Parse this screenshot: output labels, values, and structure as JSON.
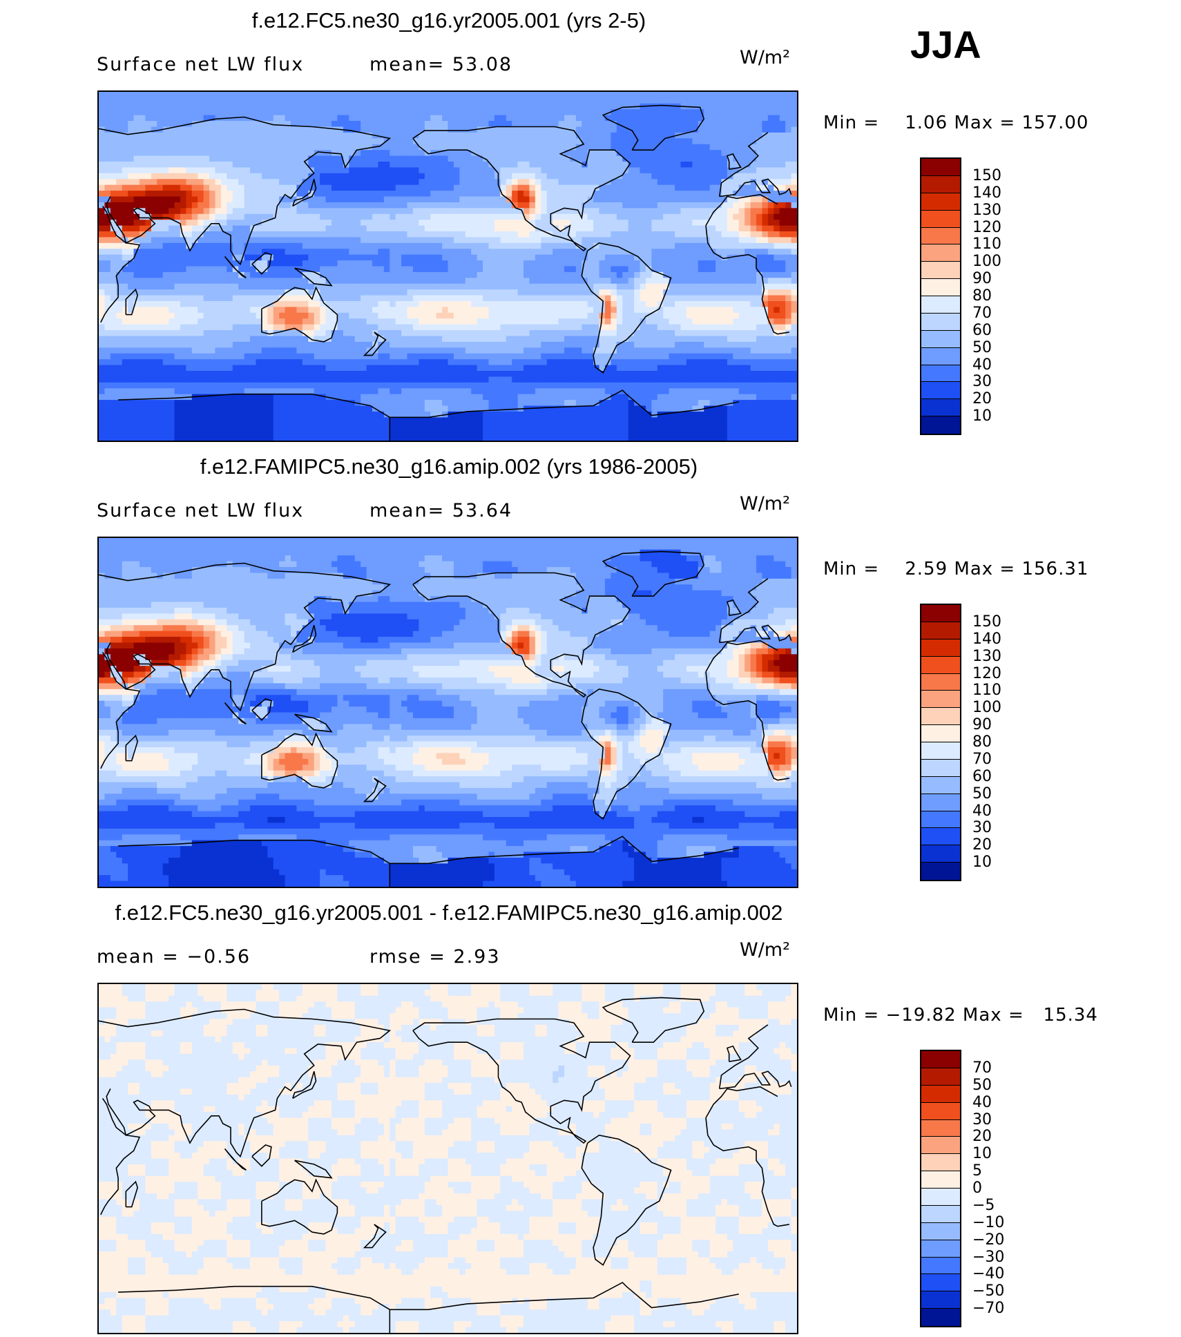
{
  "season": "JJA",
  "panels": [
    {
      "title": "f.e12.FC5.ne30_g16.yr2005.001 (yrs 2-5)",
      "subtitle": "Surface net LW flux",
      "stat1": "mean=  53.08",
      "stat2": "",
      "units": "W/m²",
      "minmax": "Min =    1.06 Max = 157.00",
      "colorbar": {
        "labels": [
          "150",
          "140",
          "130",
          "120",
          "110",
          "100",
          "90",
          "80",
          "70",
          "60",
          "50",
          "40",
          "30",
          "20",
          "10"
        ],
        "colors": [
          "#8b0000",
          "#b41a00",
          "#d42c00",
          "#f0501e",
          "#f8784a",
          "#fba37f",
          "#fdd2b8",
          "#fff0e4",
          "#dcebff",
          "#bcd6ff",
          "#96bcff",
          "#6e9cff",
          "#4478ff",
          "#1e50f5",
          "#0a32d2",
          "#001496"
        ]
      },
      "field": "control"
    },
    {
      "title": "f.e12.FAMIPC5.ne30_g16.amip.002 (yrs 1986-2005)",
      "subtitle": "Surface net LW flux",
      "stat1": "mean=  53.64",
      "stat2": "",
      "units": "W/m²",
      "minmax": "Min =    2.59 Max = 156.31",
      "colorbar": {
        "labels": [
          "150",
          "140",
          "130",
          "120",
          "110",
          "100",
          "90",
          "80",
          "70",
          "60",
          "50",
          "40",
          "30",
          "20",
          "10"
        ],
        "colors": [
          "#8b0000",
          "#b41a00",
          "#d42c00",
          "#f0501e",
          "#f8784a",
          "#fba37f",
          "#fdd2b8",
          "#fff0e4",
          "#dcebff",
          "#bcd6ff",
          "#96bcff",
          "#6e9cff",
          "#4478ff",
          "#1e50f5",
          "#0a32d2",
          "#001496"
        ]
      },
      "field": "obs"
    },
    {
      "title": "f.e12.FC5.ne30_g16.yr2005.001 - f.e12.FAMIPC5.ne30_g16.amip.002",
      "subtitle": "mean =   −0.56",
      "stat1": "",
      "stat2": "rmse =    2.93",
      "units": "W/m²",
      "minmax": "Min = −19.82 Max =   15.34",
      "colorbar": {
        "labels": [
          "70",
          "50",
          "40",
          "30",
          "20",
          "10",
          "5",
          "0",
          "−5",
          "−10",
          "−20",
          "−30",
          "−40",
          "−50",
          "−70"
        ],
        "colors": [
          "#8b0000",
          "#b41a00",
          "#d42c00",
          "#f0501e",
          "#f8784a",
          "#fba37f",
          "#fdd2b8",
          "#fff0e4",
          "#dcebff",
          "#bcd6ff",
          "#96bcff",
          "#6e9cff",
          "#4478ff",
          "#1e50f5",
          "#0a32d2",
          "#001496"
        ]
      },
      "field": "diff"
    }
  ]
}
